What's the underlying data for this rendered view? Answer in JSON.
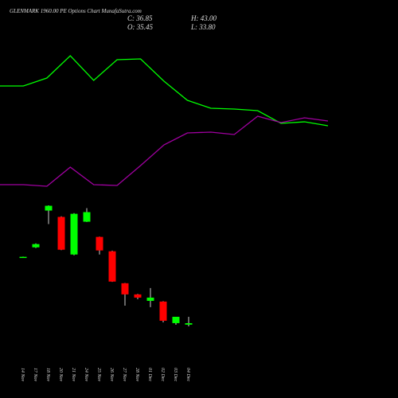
{
  "chart_data": [
    {
      "type": "candlestick",
      "title": "GLENMARK 1960.00 PE Options Chart MunafaSutra.com",
      "ohlc_labels": [
        "C: 36.85",
        "O: 35.45",
        "H: 43.00",
        "L: 33.80"
      ],
      "categories": [
        "14 Nov",
        "17 Nov",
        "18 Nov",
        "20 Nov",
        "21 Nov",
        "24 Nov",
        "25 Nov",
        "26 Nov",
        "27 Nov",
        "28 Nov",
        "01 Dec",
        "02 Dec",
        "03 Dec",
        "04 Dec"
      ],
      "open": [
        100.2,
        109.7,
        145.0,
        138.9,
        102.8,
        134.3,
        119.7,
        105.9,
        75.2,
        64.5,
        58.3,
        57.6,
        36.9,
        35.45
      ],
      "high": [
        100.8,
        113.5,
        150.0,
        139.5,
        142.5,
        147.3,
        120.0,
        106.5,
        75.5,
        65.0,
        70.6,
        58.0,
        43.0,
        43.0
      ],
      "low": [
        100.0,
        109.0,
        132.0,
        107.0,
        102.0,
        134.0,
        102.8,
        76.5,
        53.7,
        59.9,
        52.2,
        37.6,
        35.3,
        33.8
      ],
      "close": [
        100.6,
        112.8,
        149.6,
        107.4,
        141.9,
        143.5,
        106.7,
        76.8,
        64.5,
        61.4,
        61.4,
        39.2,
        43.0,
        36.85
      ],
      "up_color": "#00ff00",
      "down_color": "#ff0000"
    },
    {
      "type": "line",
      "series": [
        {
          "color": "#00ff00",
          "values": [
            142,
            142,
            152,
            180,
            149,
            175,
            176,
            148,
            124,
            114,
            113,
            111,
            95,
            97,
            92
          ]
        },
        {
          "color": "#a000a0",
          "values": [
            18,
            18,
            16,
            40,
            18,
            17,
            42,
            68,
            83,
            84,
            81,
            104,
            96,
            102,
            98
          ]
        }
      ]
    }
  ]
}
